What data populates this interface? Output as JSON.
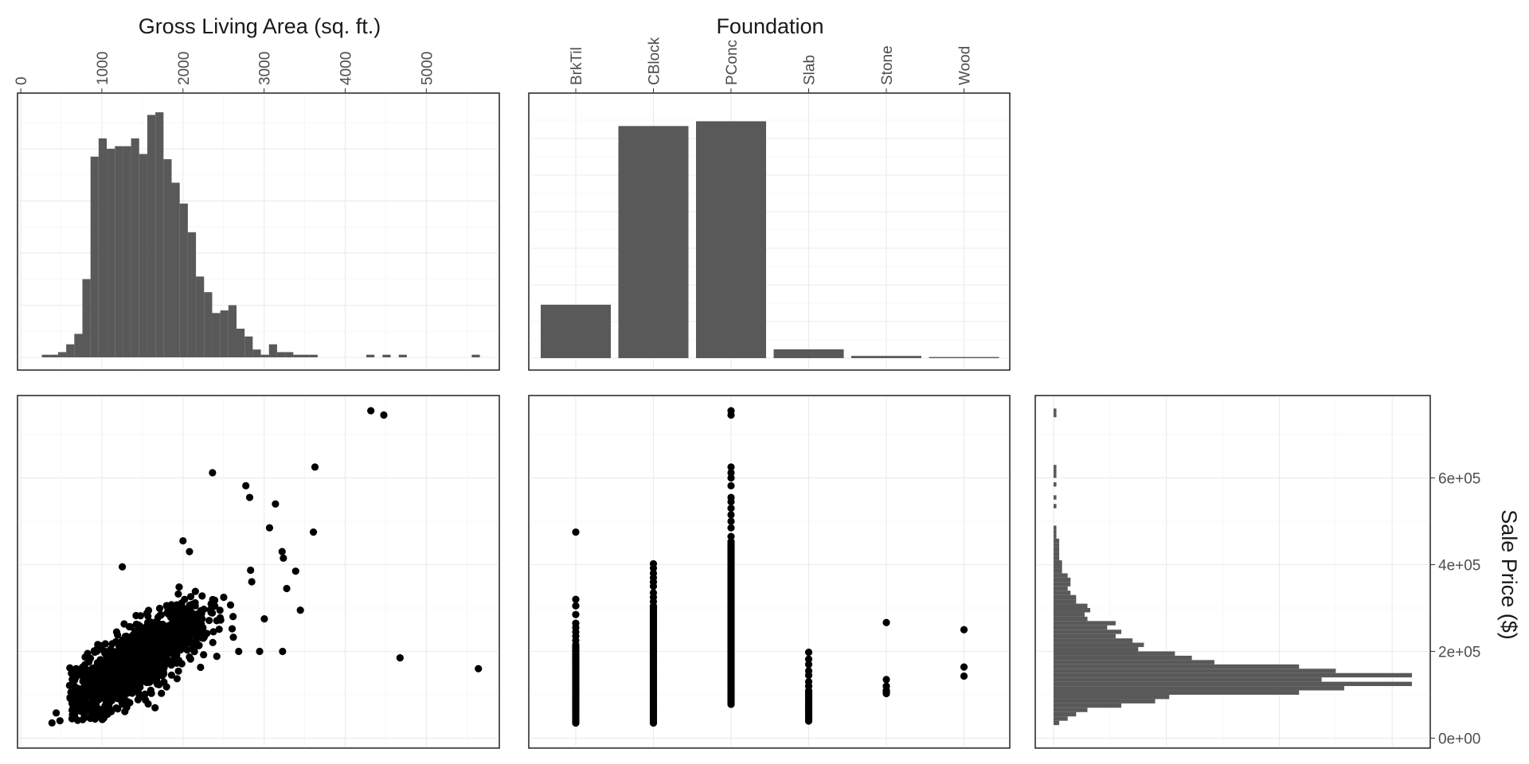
{
  "chart_data": [
    {
      "id": "gla_hist",
      "type": "bar",
      "subtype": "histogram",
      "title": "Gross Living Area (sq. ft.)",
      "xlim": [
        0,
        5800
      ],
      "xticks": [
        0,
        1000,
        2000,
        3000,
        4000,
        5000
      ],
      "xtick_labels": [
        "0",
        "1000",
        "2000",
        "3000",
        "4000",
        "5000"
      ],
      "ylim": [
        0,
        100
      ],
      "bin_width": 100,
      "bin_starts": [
        260,
        360,
        460,
        560,
        660,
        760,
        860,
        960,
        1060,
        1160,
        1260,
        1360,
        1460,
        1560,
        1660,
        1760,
        1860,
        1960,
        2060,
        2160,
        2260,
        2360,
        2460,
        2560,
        2660,
        2760,
        2860,
        2960,
        3060,
        3160,
        3260,
        3360,
        3460,
        3560,
        4260,
        4460,
        4660,
        5560
      ],
      "counts": [
        1,
        1,
        2,
        5,
        9,
        30,
        77,
        84,
        80,
        81,
        81,
        84,
        78,
        93,
        94,
        76,
        67,
        59,
        48,
        31,
        25,
        17,
        18,
        20,
        11,
        8,
        3,
        1,
        5,
        2,
        2,
        1,
        1,
        1,
        1,
        1,
        1,
        1
      ]
    },
    {
      "id": "foundation_bar",
      "type": "bar",
      "title": "Foundation",
      "categories": [
        "BrkTil",
        "CBlock",
        "PConc",
        "Slab",
        "Stone",
        "Wood"
      ],
      "values": [
        146,
        634,
        647,
        24,
        6,
        3
      ],
      "ylim": [
        0,
        680
      ]
    },
    {
      "id": "gla_vs_price",
      "type": "scatter",
      "x_variable": "Gross Living Area (sq. ft.)",
      "y_variable": "Sale Price ($)",
      "xlim": [
        0,
        5800
      ],
      "ylim": [
        0,
        780000
      ],
      "outliers": [
        {
          "x": 4316,
          "y": 755000
        },
        {
          "x": 4476,
          "y": 745000
        },
        {
          "x": 4676,
          "y": 185000
        },
        {
          "x": 5642,
          "y": 160000
        },
        {
          "x": 3627,
          "y": 625000
        },
        {
          "x": 3608,
          "y": 475000
        },
        {
          "x": 3447,
          "y": 295000
        },
        {
          "x": 3228,
          "y": 200000
        },
        {
          "x": 3140,
          "y": 540000
        },
        {
          "x": 2945,
          "y": 200000
        },
        {
          "x": 2822,
          "y": 555000
        },
        {
          "x": 2687,
          "y": 200000
        },
        {
          "x": 2364,
          "y": 612000
        },
        {
          "x": 2775,
          "y": 582000
        },
        {
          "x": 3067,
          "y": 485000
        },
        {
          "x": 3222,
          "y": 430000
        },
        {
          "x": 3238,
          "y": 415000
        },
        {
          "x": 3279,
          "y": 345000
        },
        {
          "x": 3389,
          "y": 385000
        },
        {
          "x": 3003,
          "y": 275000
        },
        {
          "x": 385,
          "y": 35000
        },
        {
          "x": 437,
          "y": 58000
        },
        {
          "x": 483,
          "y": 40000
        },
        {
          "x": 1252,
          "y": 395000
        },
        {
          "x": 2000,
          "y": 455000
        },
        {
          "x": 2080,
          "y": 430000
        }
      ],
      "cloud": {
        "center_x": 1450,
        "slope": 110,
        "intercept": 20000,
        "note": "dense cloud of remaining points"
      }
    },
    {
      "id": "foundation_vs_price",
      "type": "scatter",
      "x_variable": "Foundation",
      "y_variable": "Sale Price ($)",
      "categories": [
        "BrkTil",
        "CBlock",
        "PConc",
        "Slab",
        "Stone",
        "Wood"
      ],
      "ylim": [
        0,
        780000
      ],
      "ranges": [
        {
          "category": "BrkTil",
          "min": 34900,
          "dense_max": 210000,
          "extras": [
            215000,
            225000,
            235000,
            245000,
            255000,
            265000,
            285000,
            305000,
            320000,
            475000
          ]
        },
        {
          "category": "CBlock",
          "min": 34900,
          "dense_max": 305000,
          "extras": [
            315000,
            325000,
            335000,
            350000,
            360000,
            370000,
            380000,
            392000,
            402000
          ]
        },
        {
          "category": "PConc",
          "min": 78000,
          "dense_max": 455000,
          "extras": [
            465000,
            485000,
            500000,
            515000,
            530000,
            545000,
            555000,
            582000,
            600000,
            612000,
            625000,
            745000,
            755000
          ]
        },
        {
          "category": "Slab",
          "min": 39300,
          "dense_max": 110000,
          "extras": [
            120000,
            130000,
            145000,
            155000,
            170000,
            182000,
            198000
          ]
        },
        {
          "category": "Stone",
          "min": 102776,
          "dense_max": 112000,
          "extras": [
            120000,
            135000,
            266500
          ]
        },
        {
          "category": "Wood",
          "min": 143000,
          "dense_max": 143000,
          "extras": [
            164000,
            250000
          ]
        }
      ]
    },
    {
      "id": "price_hist",
      "type": "bar",
      "subtype": "histogram_horizontal",
      "ylim": [
        0,
        780000
      ],
      "yticks": [
        0,
        200000,
        400000,
        600000
      ],
      "ytick_labels": [
        "0e+00",
        "2e+05",
        "4e+05",
        "6e+05"
      ],
      "ylabel": "Sale Price ($)",
      "xlim": [
        0,
        140
      ],
      "bin_width": 10000,
      "bin_starts": [
        30000,
        40000,
        50000,
        60000,
        70000,
        80000,
        90000,
        100000,
        110000,
        120000,
        130000,
        140000,
        150000,
        160000,
        170000,
        180000,
        190000,
        200000,
        210000,
        220000,
        230000,
        240000,
        250000,
        260000,
        270000,
        280000,
        290000,
        300000,
        310000,
        320000,
        330000,
        340000,
        350000,
        360000,
        370000,
        380000,
        390000,
        400000,
        410000,
        420000,
        430000,
        440000,
        450000,
        460000,
        470000,
        480000,
        530000,
        550000,
        580000,
        600000,
        610000,
        620000,
        740000,
        750000
      ],
      "counts": [
        2,
        5,
        8,
        12,
        24,
        36,
        41,
        87,
        103,
        127,
        95,
        127,
        100,
        87,
        57,
        49,
        43,
        30,
        32,
        28,
        22,
        24,
        19,
        22,
        12,
        11,
        13,
        12,
        8,
        8,
        6,
        5,
        6,
        6,
        5,
        3,
        3,
        3,
        2,
        2,
        2,
        2,
        2,
        1,
        1,
        1,
        1,
        1,
        1,
        1,
        1,
        1,
        1,
        1
      ]
    }
  ]
}
